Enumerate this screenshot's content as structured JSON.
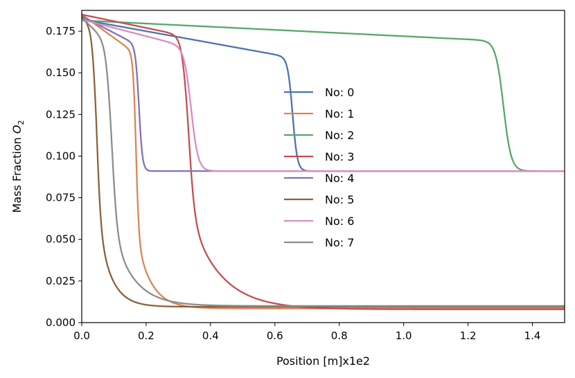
{
  "chart_data": {
    "type": "line",
    "title": "",
    "xlabel": "Position [m]x1e2",
    "ylabel_text": "Mass Fraction ",
    "ylabel_symbol": "O",
    "ylabel_subscript": "2",
    "xlim": [
      0.0,
      1.5
    ],
    "ylim": [
      0.0,
      0.1875
    ],
    "x_ticks": [
      0.0,
      0.2,
      0.4,
      0.6,
      0.8,
      1.0,
      1.2,
      1.4
    ],
    "x_tick_labels": [
      "0.0",
      "0.2",
      "0.4",
      "0.6",
      "0.8",
      "1.0",
      "1.2",
      "1.4"
    ],
    "y_ticks": [
      0.0,
      0.025,
      0.05,
      0.075,
      0.1,
      0.125,
      0.15,
      0.175
    ],
    "y_tick_labels": [
      "0.000",
      "0.025",
      "0.050",
      "0.075",
      "0.100",
      "0.125",
      "0.150",
      "0.175"
    ],
    "grid": false,
    "legend_position": "center",
    "series": [
      {
        "name": "No: 0",
        "color": "#4c72b0",
        "start": 0.182,
        "plateau_slope": 0.035,
        "drop_center": 0.655,
        "drop_width": 0.0075,
        "end": 0.091,
        "tail": 0.0,
        "tail_scale": 1.0
      },
      {
        "name": "No: 1",
        "color": "#dd8452",
        "start": 0.185,
        "plateau_slope": 0.14,
        "drop_center": 0.168,
        "drop_width": 0.0045,
        "end": 0.0085,
        "tail": 0.045,
        "tail_scale": 0.045
      },
      {
        "name": "No: 2",
        "color": "#55a868",
        "start": 0.1815,
        "plateau_slope": 0.0095,
        "drop_center": 1.31,
        "drop_width": 0.012,
        "end": 0.091,
        "tail": 0.0,
        "tail_scale": 1.0
      },
      {
        "name": "No: 3",
        "color": "#c44e52",
        "start": 0.185,
        "plateau_slope": 0.04,
        "drop_center": 0.33,
        "drop_width": 0.0095,
        "end": 0.008,
        "tail": 0.06,
        "tail_scale": 0.095
      },
      {
        "name": "No: 4",
        "color": "#8172b3",
        "start": 0.184,
        "plateau_slope": 0.1,
        "drop_center": 0.178,
        "drop_width": 0.0055,
        "end": 0.091,
        "tail": 0.0,
        "tail_scale": 1.0
      },
      {
        "name": "No: 5",
        "color": "#8c613c",
        "start": 0.184,
        "plateau_slope": 0.2,
        "drop_center": 0.045,
        "drop_width": 0.0065,
        "end": 0.0095,
        "tail": 0.058,
        "tail_scale": 0.04
      },
      {
        "name": "No: 6",
        "color": "#da8bc3",
        "start": 0.182,
        "plateau_slope": 0.05,
        "drop_center": 0.34,
        "drop_width": 0.011,
        "end": 0.091,
        "tail": 0.0,
        "tail_scale": 1.0
      },
      {
        "name": "No: 7",
        "color": "#8c8c8c",
        "start": 0.183,
        "plateau_slope": 0.18,
        "drop_center": 0.092,
        "drop_width": 0.0085,
        "end": 0.01,
        "tail": 0.048,
        "tail_scale": 0.065
      }
    ]
  }
}
